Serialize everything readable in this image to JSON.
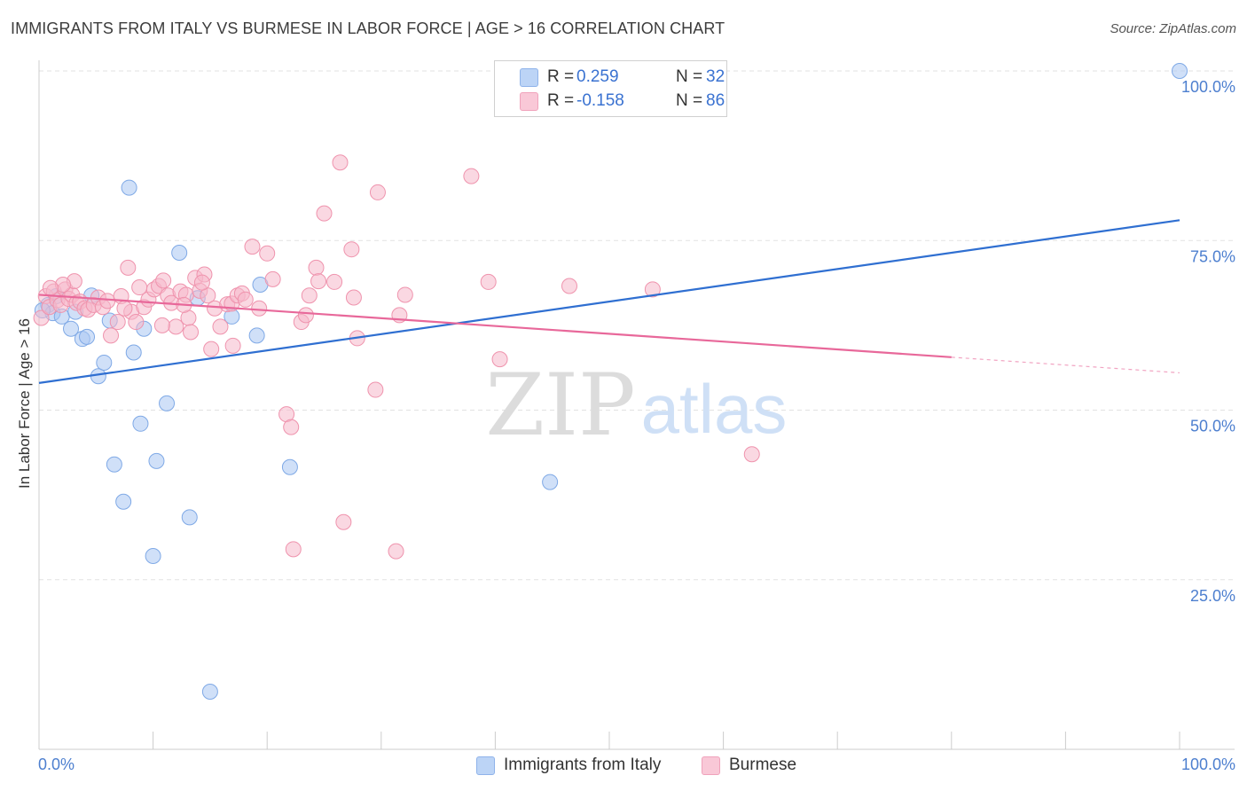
{
  "header": {
    "title": "IMMIGRANTS FROM ITALY VS BURMESE IN LABOR FORCE | AGE > 16 CORRELATION CHART",
    "source": "Source: ZipAtlas.com"
  },
  "watermark": {
    "zip": "ZIP",
    "atlas": "atlas"
  },
  "legend": {
    "italy": {
      "r_label": "R =",
      "r_value": "0.259",
      "n_label": "N =",
      "n_value": "32",
      "color": "#a9c6f2"
    },
    "burmese": {
      "r_label": "R =",
      "r_value": "-0.158",
      "n_label": "N =",
      "n_value": "86",
      "color": "#f6b8cb"
    }
  },
  "bottom_legend": {
    "italy": "Immigrants from Italy",
    "burmese": "Burmese"
  },
  "axis": {
    "ylabel": "In Labor Force | Age > 16",
    "x_min_label": "0.0%",
    "x_max_label": "100.0%"
  },
  "chart_data": {
    "type": "scatter",
    "title": "IMMIGRANTS FROM ITALY VS BURMESE IN LABOR FORCE | AGE > 16 CORRELATION CHART",
    "xlabel": "",
    "ylabel": "In Labor Force | Age > 16",
    "xlim": [
      0,
      100
    ],
    "ylim": [
      0,
      100
    ],
    "y_ticks": [
      {
        "value": 25,
        "label": "25.0%"
      },
      {
        "value": 50,
        "label": "50.0%"
      },
      {
        "value": 75,
        "label": "75.0%"
      },
      {
        "value": 100,
        "label": "100.0%"
      }
    ],
    "grid": true,
    "legend_position": "top-center",
    "series": [
      {
        "name": "Immigrants from Italy",
        "color": "#a9c6f2",
        "stroke": "#7fa9e6",
        "line_color": "#2f6fd1",
        "trend": {
          "x0": 0,
          "y0": 54.0,
          "x1": 100,
          "y1": 78.0,
          "solid_to": 100
        },
        "points": [
          [
            0.8,
            65.5
          ],
          [
            1.2,
            64.3
          ],
          [
            1.5,
            66.8
          ],
          [
            2.0,
            63.8
          ],
          [
            2.8,
            62.0
          ],
          [
            3.2,
            64.5
          ],
          [
            3.8,
            60.5
          ],
          [
            4.2,
            60.8
          ],
          [
            4.6,
            66.9
          ],
          [
            5.2,
            55.0
          ],
          [
            5.7,
            57.0
          ],
          [
            6.2,
            63.2
          ],
          [
            6.6,
            42.0
          ],
          [
            7.4,
            36.5
          ],
          [
            7.9,
            82.8
          ],
          [
            8.3,
            58.5
          ],
          [
            8.9,
            48.0
          ],
          [
            9.2,
            62.0
          ],
          [
            10.0,
            28.5
          ],
          [
            10.3,
            42.5
          ],
          [
            11.2,
            51.0
          ],
          [
            12.3,
            73.2
          ],
          [
            13.2,
            34.2
          ],
          [
            13.9,
            66.5
          ],
          [
            15.0,
            8.5
          ],
          [
            16.9,
            63.8
          ],
          [
            19.1,
            61.0
          ],
          [
            19.4,
            68.5
          ],
          [
            22.0,
            41.6
          ],
          [
            44.8,
            39.4
          ],
          [
            100.0,
            100.0
          ],
          [
            0.3,
            64.7
          ]
        ]
      },
      {
        "name": "Burmese",
        "color": "#f6b8cb",
        "stroke": "#ef93ad",
        "line_color": "#e8689a",
        "trend": {
          "x0": 0,
          "y0": 67.0,
          "x1": 100,
          "y1": 55.5,
          "solid_to": 80
        },
        "points": [
          [
            0.2,
            63.6
          ],
          [
            0.6,
            66.8
          ],
          [
            0.9,
            65.2
          ],
          [
            1.3,
            67.5
          ],
          [
            1.6,
            66.2
          ],
          [
            1.9,
            65.5
          ],
          [
            2.3,
            67.8
          ],
          [
            2.6,
            66.4
          ],
          [
            2.9,
            67.0
          ],
          [
            3.3,
            65.8
          ],
          [
            3.6,
            66.0
          ],
          [
            4.0,
            65.0
          ],
          [
            4.3,
            64.8
          ],
          [
            4.8,
            65.5
          ],
          [
            5.2,
            66.6
          ],
          [
            5.6,
            65.2
          ],
          [
            6.0,
            66.1
          ],
          [
            6.3,
            61.0
          ],
          [
            6.9,
            63.0
          ],
          [
            7.2,
            66.8
          ],
          [
            7.8,
            71.0
          ],
          [
            8.1,
            64.5
          ],
          [
            8.5,
            63.0
          ],
          [
            8.8,
            68.1
          ],
          [
            9.2,
            65.2
          ],
          [
            9.6,
            66.3
          ],
          [
            10.1,
            67.8
          ],
          [
            10.5,
            68.3
          ],
          [
            10.9,
            69.1
          ],
          [
            11.3,
            66.9
          ],
          [
            11.6,
            65.8
          ],
          [
            12.0,
            62.3
          ],
          [
            12.4,
            67.5
          ],
          [
            12.9,
            67.0
          ],
          [
            13.1,
            63.6
          ],
          [
            13.3,
            61.5
          ],
          [
            13.7,
            69.5
          ],
          [
            14.1,
            67.6
          ],
          [
            14.5,
            70.0
          ],
          [
            14.8,
            66.9
          ],
          [
            15.1,
            59.0
          ],
          [
            15.4,
            65.0
          ],
          [
            15.9,
            62.3
          ],
          [
            16.5,
            65.6
          ],
          [
            16.9,
            65.7
          ],
          [
            17.4,
            66.9
          ],
          [
            17.8,
            67.2
          ],
          [
            18.1,
            66.3
          ],
          [
            18.7,
            74.1
          ],
          [
            19.3,
            65.0
          ],
          [
            20.0,
            73.1
          ],
          [
            20.5,
            69.3
          ],
          [
            21.7,
            49.4
          ],
          [
            22.1,
            47.5
          ],
          [
            22.3,
            29.5
          ],
          [
            23.0,
            63.0
          ],
          [
            23.4,
            64.0
          ],
          [
            23.7,
            66.9
          ],
          [
            24.3,
            71.0
          ],
          [
            24.5,
            69.0
          ],
          [
            25.0,
            79.0
          ],
          [
            25.9,
            68.9
          ],
          [
            26.4,
            86.5
          ],
          [
            26.7,
            33.5
          ],
          [
            27.4,
            73.7
          ],
          [
            27.6,
            66.6
          ],
          [
            27.9,
            60.6
          ],
          [
            29.5,
            53.0
          ],
          [
            29.7,
            82.1
          ],
          [
            31.3,
            29.2
          ],
          [
            31.6,
            64.0
          ],
          [
            32.1,
            67.0
          ],
          [
            37.9,
            84.5
          ],
          [
            39.4,
            68.9
          ],
          [
            40.4,
            57.5
          ],
          [
            46.5,
            68.3
          ],
          [
            53.8,
            67.8
          ],
          [
            62.5,
            43.5
          ],
          [
            3.1,
            69.0
          ],
          [
            2.1,
            68.5
          ],
          [
            7.5,
            65.0
          ],
          [
            12.7,
            65.5
          ],
          [
            17.0,
            59.5
          ],
          [
            1.0,
            68.0
          ],
          [
            10.8,
            62.5
          ],
          [
            14.3,
            68.8
          ]
        ]
      }
    ]
  }
}
